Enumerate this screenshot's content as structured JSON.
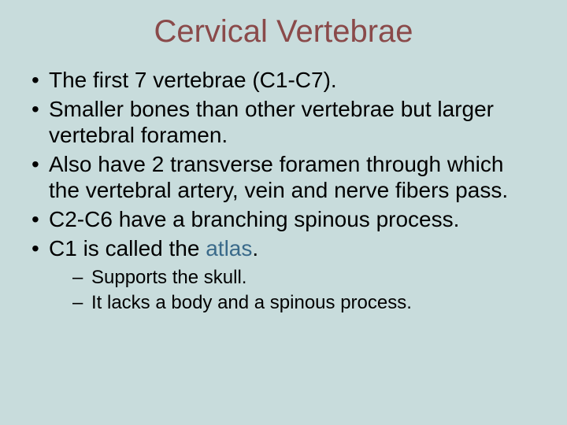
{
  "colors": {
    "background": "#c8dcdc",
    "title": "#8a4a4a",
    "body_text": "#000000",
    "highlight": "#3a6a8a"
  },
  "typography": {
    "title_fontsize": 40,
    "bullet_fontsize": 28,
    "sub_bullet_fontsize": 24,
    "font_family": "Arial"
  },
  "title": "Cervical Vertebrae",
  "bullets": [
    {
      "text": "The first 7 vertebrae (C1-C7)."
    },
    {
      "text": "Smaller bones than other vertebrae but larger vertebral foramen."
    },
    {
      "text": "Also have 2 transverse foramen through which the vertebral artery, vein and nerve fibers pass."
    },
    {
      "text": "C2-C6 have a branching spinous process."
    },
    {
      "prefix": "C1 is called the ",
      "highlight": "atlas",
      "suffix": ".",
      "sub": [
        {
          "text": "Supports the skull."
        },
        {
          "text": "It lacks a body and a spinous process."
        }
      ]
    }
  ]
}
